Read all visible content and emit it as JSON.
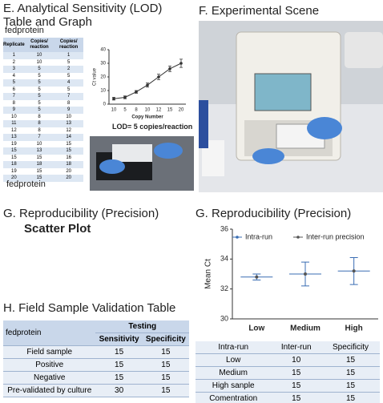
{
  "sections": {
    "e_title": "E. Analytical Sensitivity (LOD) Table and Graph",
    "e_label_top": "fedprotein",
    "e_label_bottom": "fedprotein",
    "lod_note": "LOD= 5 copies/reaction",
    "f_title": "F. Experimental Scene",
    "g_left_title": "G. Reproducibility (Precision)",
    "g_left_subtitle": "Scatter Plot",
    "g_right_title": "G. Reproducibility (Precision)",
    "h_title": "H. Field Sample Validation Table"
  },
  "tables": {
    "lod": {
      "header": [
        "Replicate",
        "Copies/ reaction",
        "Copies/ reaction"
      ],
      "rows": [
        [
          1,
          10,
          1
        ],
        [
          2,
          10,
          5
        ],
        [
          3,
          5,
          2
        ],
        [
          4,
          5,
          5
        ],
        [
          5,
          5,
          4
        ],
        [
          6,
          5,
          5
        ],
        [
          7,
          5,
          7
        ],
        [
          8,
          5,
          8
        ],
        [
          9,
          5,
          9
        ],
        [
          10,
          8,
          10
        ],
        [
          11,
          8,
          13
        ],
        [
          12,
          8,
          12
        ],
        [
          13,
          7,
          14
        ],
        [
          19,
          10,
          15
        ],
        [
          15,
          13,
          15
        ],
        [
          15,
          15,
          16
        ],
        [
          18,
          18,
          18
        ],
        [
          19,
          15,
          20
        ],
        [
          20,
          15,
          20
        ]
      ]
    },
    "field": {
      "corner": "fedprotein",
      "group": "Testing",
      "header": [
        "Sensitivity",
        "Specificity"
      ],
      "rows": [
        [
          "Field sample",
          15,
          15
        ],
        [
          "Positive",
          15,
          15
        ],
        [
          "Negative",
          15,
          15
        ],
        [
          "Pre-validated by culture",
          30,
          15
        ]
      ]
    },
    "precision": {
      "header": [
        "Intra-run",
        "Inter-run",
        "Specificity"
      ],
      "rows": [
        [
          "Low",
          10,
          15
        ],
        [
          "Medium",
          15,
          15
        ],
        [
          "High sanple",
          15,
          15
        ],
        [
          "Comentration",
          15,
          15
        ]
      ]
    }
  },
  "chart_data": [
    {
      "type": "line",
      "y_label": "Ct value",
      "x_label": "Copy Number",
      "categories": [
        "10",
        "5",
        "8",
        "10",
        "12",
        "15",
        "20"
      ],
      "values": [
        4,
        5,
        9,
        14,
        20,
        26,
        30
      ],
      "errors": [
        1,
        1,
        1,
        1.5,
        2,
        2,
        3
      ],
      "color": "#333333",
      "ylim": [
        0,
        40
      ],
      "yticks": [
        0,
        10,
        20,
        30,
        40
      ]
    },
    {
      "type": "errorbar",
      "y_label": "Mean Ct",
      "categories": [
        "Low",
        "Medium",
        "High"
      ],
      "ylim": [
        30,
        36
      ],
      "yticks": [
        30,
        32,
        34,
        36
      ],
      "series": [
        {
          "name": "Intra-run",
          "color": "#3a6db3",
          "values": [
            32.8,
            33.0,
            33.2
          ],
          "errors": [
            0.2,
            0.8,
            0.9
          ]
        },
        {
          "name": "Inter-run precision",
          "color": "#555555",
          "values": [
            32.8,
            33.0,
            33.2
          ]
        }
      ]
    }
  ]
}
